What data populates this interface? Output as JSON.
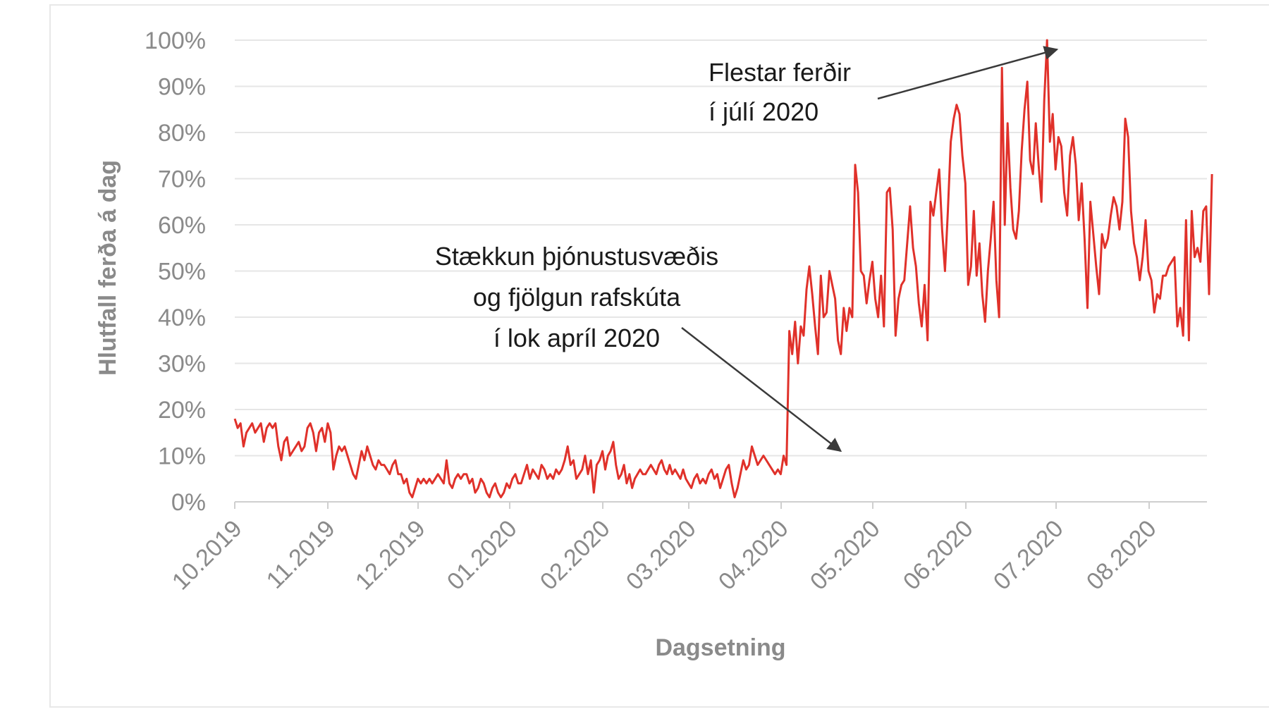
{
  "chart_data": {
    "type": "line",
    "xlabel": "Dagsetning",
    "ylabel": "Hlutfall ferða á dag",
    "ylim": [
      0,
      100
    ],
    "yticks": [
      "0%",
      "10%",
      "20%",
      "30%",
      "40%",
      "50%",
      "60%",
      "70%",
      "80%",
      "90%",
      "100%"
    ],
    "xticks": [
      "10.2019",
      "11.2019",
      "12.2019",
      "01.2020",
      "02.2020",
      "03.2020",
      "04.2020",
      "05.2020",
      "06.2020",
      "07.2020",
      "08.2020"
    ],
    "grid": true,
    "color": "#e0312a",
    "series": [
      {
        "name": "Hlutfall ferða á dag",
        "x_start_month_index": 0,
        "values": [
          18,
          16,
          17,
          12,
          15,
          16,
          17,
          15,
          16,
          17,
          13,
          16,
          17,
          16,
          17,
          12,
          9,
          13,
          14,
          10,
          11,
          12,
          13,
          11,
          12,
          16,
          17,
          15,
          11,
          15,
          16,
          13,
          17,
          15,
          7,
          10,
          12,
          11,
          12,
          10,
          8,
          6,
          5,
          8,
          11,
          9,
          12,
          10,
          8,
          7,
          9,
          8,
          8,
          7,
          6,
          8,
          9,
          6,
          6,
          4,
          5,
          2,
          1,
          3,
          5,
          4,
          5,
          4,
          5,
          4,
          5,
          6,
          5,
          4,
          9,
          4,
          3,
          5,
          6,
          5,
          6,
          6,
          4,
          5,
          2,
          3,
          5,
          4,
          2,
          1,
          3,
          4,
          2,
          1,
          2,
          4,
          3,
          5,
          6,
          4,
          4,
          6,
          8,
          5,
          7,
          6,
          5,
          8,
          7,
          5,
          6,
          5,
          7,
          6,
          7,
          9,
          12,
          8,
          9,
          5,
          6,
          7,
          10,
          6,
          9,
          2,
          8,
          9,
          11,
          7,
          10,
          11,
          13,
          8,
          5,
          6,
          8,
          4,
          6,
          3,
          5,
          6,
          7,
          6,
          6,
          7,
          8,
          7,
          6,
          8,
          9,
          7,
          6,
          8,
          6,
          7,
          6,
          5,
          7,
          5,
          4,
          3,
          5,
          6,
          4,
          5,
          4,
          6,
          7,
          5,
          6,
          3,
          5,
          7,
          8,
          4,
          1,
          3,
          6,
          9,
          7,
          8,
          12,
          10,
          8,
          9,
          10,
          9,
          8,
          7,
          6,
          7,
          6,
          10,
          8,
          37,
          32,
          39,
          30,
          38,
          36,
          46,
          51,
          45,
          38,
          32,
          49,
          40,
          41,
          50,
          47,
          44,
          35,
          32,
          42,
          37,
          42,
          40,
          73,
          67,
          50,
          49,
          43,
          48,
          52,
          44,
          40,
          49,
          38,
          67,
          68,
          59,
          36,
          44,
          47,
          48,
          56,
          64,
          55,
          51,
          43,
          38,
          47,
          35,
          65,
          62,
          67,
          72,
          59,
          50,
          63,
          78,
          83,
          86,
          84,
          75,
          69,
          47,
          51,
          63,
          49,
          56,
          45,
          39,
          50,
          57,
          65,
          48,
          40,
          94,
          60,
          82,
          68,
          59,
          57,
          63,
          76,
          85,
          91,
          74,
          71,
          82,
          73,
          65,
          87,
          100,
          78,
          84,
          72,
          79,
          77,
          67,
          62,
          75,
          79,
          73,
          61,
          69,
          57,
          42,
          65,
          58,
          51,
          45,
          58,
          55,
          57,
          62,
          66,
          64,
          59,
          65,
          83,
          79,
          63,
          56,
          53,
          48,
          53,
          61,
          50,
          48,
          41,
          45,
          44,
          49,
          49,
          51,
          52,
          53,
          38,
          42,
          36,
          61,
          35,
          63,
          53,
          55,
          52,
          63,
          64,
          45,
          71
        ]
      }
    ],
    "annotations": [
      {
        "lines": [
          "Flestar ferðir",
          "í júlí 2020"
        ],
        "points_to_month_index": 9.01,
        "points_to_value": 98
      },
      {
        "lines": [
          "Stækkun þjónustusvæðis",
          "og fjölgun rafskúta",
          "í lok apríl 2020"
        ],
        "points_to_month_index": 6.65,
        "points_to_value": 11
      }
    ]
  }
}
